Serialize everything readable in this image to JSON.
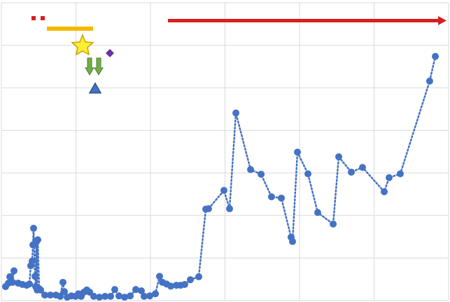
{
  "chart_data": {
    "type": "line",
    "color": "#4472c4",
    "line_style": "dotted",
    "markers": true,
    "grid": true,
    "xlim": [
      0,
      6
    ],
    "ylim": [
      0,
      7
    ],
    "xticks": [
      0,
      1,
      2,
      3,
      4,
      5,
      6
    ],
    "yticks": [
      0,
      1,
      2,
      3,
      4,
      5,
      6,
      7
    ],
    "x": [
      0.056,
      0.094,
      0.113,
      0.169,
      0.15,
      0.225,
      0.282,
      0.338,
      0.376,
      0.394,
      0.413,
      0.423,
      0.432,
      0.451,
      0.46,
      0.469,
      0.479,
      0.488,
      0.507,
      0.526,
      0.582,
      0.657,
      0.732,
      0.789,
      0.826,
      0.845,
      0.883,
      0.939,
      0.995,
      1.033,
      1.07,
      1.108,
      1.146,
      1.183,
      1.239,
      1.315,
      1.39,
      1.465,
      1.521,
      1.577,
      1.653,
      1.728,
      1.803,
      1.878,
      1.915,
      1.991,
      2.066,
      2.122,
      2.16,
      2.216,
      2.272,
      2.347,
      2.404,
      2.46,
      2.535,
      2.648,
      2.742,
      2.779,
      2.986,
      3.061,
      3.146,
      3.343,
      3.484,
      3.624,
      3.756,
      3.887,
      3.906,
      3.972,
      4.113,
      4.244,
      4.451,
      4.526,
      4.695,
      4.845,
      5.136,
      5.202,
      5.352,
      5.746,
      5.822
    ],
    "values": [
      0.33,
      0.41,
      0.56,
      0.7,
      0.43,
      0.41,
      0.38,
      0.36,
      0.39,
      0.82,
      0.93,
      1.31,
      1.7,
      0.57,
      0.33,
      1.38,
      0.25,
      1.43,
      0.28,
      0.25,
      0.13,
      0.13,
      0.13,
      0.1,
      0.43,
      0.21,
      0.08,
      0.11,
      0.1,
      0.16,
      0.1,
      0.2,
      0.25,
      0.2,
      0.1,
      0.08,
      0.1,
      0.1,
      0.26,
      0.11,
      0.08,
      0.11,
      0.26,
      0.23,
      0.1,
      0.11,
      0.16,
      0.57,
      0.43,
      0.39,
      0.34,
      0.36,
      0.36,
      0.38,
      0.49,
      0.56,
      2.15,
      2.16,
      2.59,
      2.16,
      4.41,
      3.08,
      2.97,
      2.44,
      2.41,
      1.49,
      1.39,
      3.49,
      2.98,
      2.07,
      1.8,
      3.38,
      3.02,
      3.13,
      2.56,
      2.89,
      2.98,
      5.16,
      5.74
    ]
  }
}
